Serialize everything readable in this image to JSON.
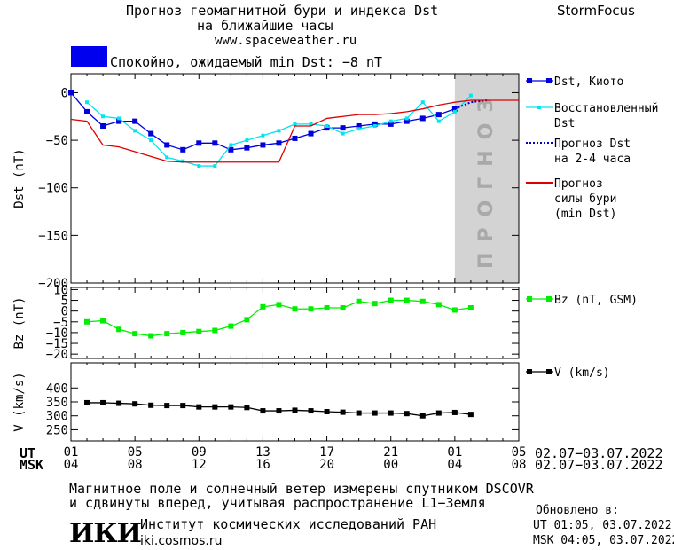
{
  "header": {
    "title_line1": "Прогноз геомагнитной бури и индекса Dst",
    "title_line2": "на ближайшие часы",
    "website": "www.spaceweather.ru",
    "brand": "StormFocus"
  },
  "status": {
    "color": "#0000ee",
    "text": "Спокойно, ожидаемый min Dst: −8 nT"
  },
  "colors": {
    "dst": "#0000dd",
    "restored": "#00e5ee",
    "forecast_dst": "#0000cc",
    "storm": "#dd0000",
    "bz": "#00ee00",
    "v": "#000000",
    "shade": "#d3d3d3"
  },
  "chart_data": [
    {
      "type": "line",
      "panel": "dst",
      "ylabel": "Dst (nT)",
      "ylim": [
        -200,
        20
      ],
      "yticks": [
        0,
        -50,
        -100,
        -150,
        -200
      ],
      "ytick_labels": [
        "0",
        "−50",
        "−100",
        "−150",
        "−200"
      ],
      "forecast_label": "ПРОГНОЗ",
      "forecast_x_range": [
        24,
        28
      ],
      "legend": [
        {
          "key": "dst",
          "label_lines": [
            "Dst, Киото"
          ]
        },
        {
          "key": "restored",
          "label_lines": [
            "Восстановленный",
            "Dst"
          ]
        },
        {
          "key": "forecast_dst",
          "label_lines": [
            "Прогноз Dst",
            "на 2-4 часа"
          ]
        },
        {
          "key": "storm",
          "label_lines": [
            "Прогноз",
            "силы бури",
            "(min Dst)"
          ]
        }
      ],
      "series": [
        {
          "key": "dst",
          "name": "Dst, Киото",
          "x": [
            0,
            1,
            2,
            3,
            4,
            5,
            6,
            7,
            8,
            9,
            10,
            11,
            12,
            13,
            14,
            15,
            16,
            17,
            18,
            19,
            20,
            21,
            22,
            23,
            24
          ],
          "y": [
            0,
            -20,
            -35,
            -30,
            -30,
            -43,
            -55,
            -60,
            -53,
            -53,
            -60,
            -58,
            -55,
            -53,
            -48,
            -43,
            -37,
            -37,
            -35,
            -33,
            -33,
            -30,
            -27,
            -23,
            -17
          ]
        },
        {
          "key": "restored",
          "name": "Восстановленный Dst",
          "x": [
            1,
            2,
            3,
            4,
            5,
            6,
            7,
            8,
            9,
            10,
            11,
            12,
            13,
            14,
            15,
            16,
            17,
            18,
            19,
            20,
            21,
            22,
            23,
            24,
            25
          ],
          "y": [
            -10,
            -25,
            -27,
            -40,
            -50,
            -68,
            -72,
            -77,
            -77,
            -55,
            -50,
            -45,
            -40,
            -33,
            -33,
            -35,
            -43,
            -38,
            -35,
            -30,
            -27,
            -10,
            -30,
            -20,
            -3
          ]
        },
        {
          "key": "forecast_dst",
          "name": "Прогноз Dst на 2-4 часа",
          "x": [
            24,
            25,
            26
          ],
          "y": [
            -17,
            -10,
            -8
          ]
        },
        {
          "key": "storm",
          "name": "Прогноз силы бури (min Dst)",
          "x": [
            0,
            1,
            2,
            3,
            4,
            5,
            6,
            7,
            8,
            9,
            10,
            11,
            12,
            13,
            14,
            15,
            16,
            17,
            18,
            19,
            20,
            21,
            22,
            23,
            24,
            25,
            26,
            27,
            28
          ],
          "y": [
            -28,
            -30,
            -55,
            -57,
            -62,
            -67,
            -72,
            -73,
            -73,
            -73,
            -73,
            -73,
            -73,
            -73,
            -35,
            -35,
            -27,
            -25,
            -23,
            -23,
            -22,
            -20,
            -17,
            -13,
            -10,
            -8,
            -8,
            -8,
            -8
          ]
        }
      ]
    },
    {
      "type": "line",
      "panel": "bz",
      "ylabel": "Bz (nT)",
      "ylim": [
        -22,
        11
      ],
      "yticks": [
        10,
        5,
        0,
        -5,
        -10,
        -15,
        -20
      ],
      "ytick_labels": [
        "10",
        "5",
        "0",
        "−5",
        "−10",
        "−15",
        "−20"
      ],
      "legend": [
        {
          "key": "bz",
          "label_lines": [
            "Bz (nT, GSM)"
          ]
        }
      ],
      "series": [
        {
          "key": "bz",
          "name": "Bz (nT, GSM)",
          "x": [
            1,
            2,
            3,
            4,
            5,
            6,
            7,
            8,
            9,
            10,
            11,
            12,
            13,
            14,
            15,
            16,
            17,
            18,
            19,
            20,
            21,
            22,
            23,
            24,
            25
          ],
          "y": [
            -5,
            -4.5,
            -8.5,
            -10.5,
            -11.5,
            -10.5,
            -10,
            -9.5,
            -9,
            -7,
            -4,
            2,
            3,
            1,
            1,
            1.5,
            1.5,
            4.5,
            3.5,
            5,
            5,
            4.5,
            3,
            0.5,
            1.5
          ]
        }
      ]
    },
    {
      "type": "line",
      "panel": "v",
      "ylabel": "V (km/s)",
      "ylim": [
        210,
        490
      ],
      "yticks": [
        400,
        350,
        300,
        250
      ],
      "ytick_labels": [
        "400",
        "350",
        "300",
        "250"
      ],
      "legend": [
        {
          "key": "v",
          "label_lines": [
            "V (km/s)"
          ]
        }
      ],
      "series": [
        {
          "key": "v",
          "name": "V (km/s)",
          "x": [
            1,
            2,
            3,
            4,
            5,
            6,
            7,
            8,
            9,
            10,
            11,
            12,
            13,
            14,
            15,
            16,
            17,
            18,
            19,
            20,
            21,
            22,
            23,
            24,
            25
          ],
          "y": [
            347,
            347,
            345,
            343,
            338,
            337,
            337,
            332,
            332,
            332,
            330,
            318,
            318,
            320,
            318,
            315,
            313,
            310,
            310,
            310,
            308,
            300,
            310,
            312,
            305
          ]
        }
      ]
    }
  ],
  "time_axis": {
    "xlim": [
      0,
      28
    ],
    "tick_x": [
      0,
      4,
      8,
      12,
      16,
      20,
      24,
      28
    ],
    "ut_label": "UT",
    "msk_label": "MSK",
    "ut_ticks": [
      "01",
      "05",
      "09",
      "13",
      "17",
      "21",
      "01",
      "05"
    ],
    "msk_ticks": [
      "04",
      "08",
      "12",
      "16",
      "20",
      "00",
      "04",
      "08"
    ],
    "ut_range": "02.07−03.07.2022",
    "msk_range": "02.07−03.07.2022"
  },
  "footer": {
    "note_line1": "Магнитное поле и солнечный ветер измерены спутником DSCOVR",
    "note_line2": "и сдвинуты вперед, учитывая распространение L1−Земля",
    "logo": "ИКИ",
    "institute": "Институт космических исследований РАН",
    "site": "iki.cosmos.ru",
    "updated_label": "Обновлено в:",
    "updated_ut": "UT  01:05, 03.07.2022",
    "updated_msk": "MSK 04:05, 03.07.2022"
  }
}
